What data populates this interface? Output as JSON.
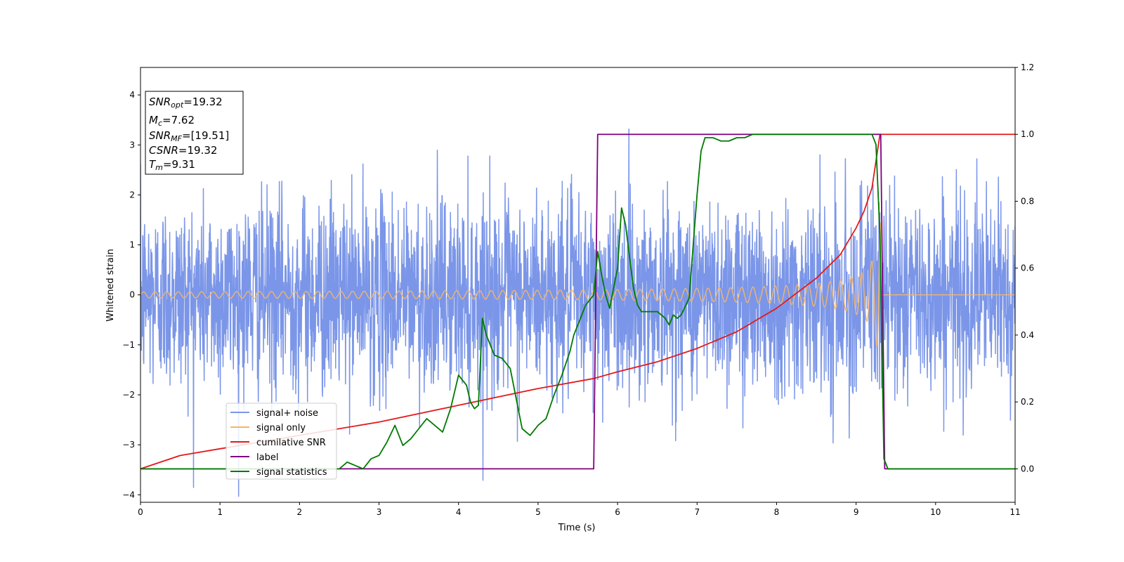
{
  "chart_data": {
    "type": "line",
    "xlabel": "Time (s)",
    "ylabel": "Whitened strain",
    "xlim": [
      0,
      11
    ],
    "ylim_left": [
      -4.15,
      4.55
    ],
    "ylim_right": [
      -0.1,
      1.2
    ],
    "x_ticks": [
      "0",
      "1",
      "2",
      "3",
      "4",
      "5",
      "6",
      "7",
      "8",
      "9",
      "10",
      "11"
    ],
    "y_ticks_left": [
      "−4",
      "−3",
      "−2",
      "−1",
      "0",
      "1",
      "2",
      "3",
      "4"
    ],
    "y_ticks_right": [
      "0.0",
      "0.2",
      "0.4",
      "0.6",
      "0.8",
      "1.0",
      "1.2"
    ],
    "legend_position": "lower-left",
    "grid": false,
    "annotation": {
      "lines": [
        {
          "name": "SNR",
          "sub": "opt",
          "value": "=19.32"
        },
        {
          "name": "M",
          "sub": "c",
          "value": "=7.62"
        },
        {
          "name": "SNR",
          "sub": "MF",
          "value": "=[19.51]"
        },
        {
          "name": "CSNR",
          "sub": "",
          "value": "=19.32"
        },
        {
          "name": "T",
          "sub": "m",
          "value": "=9.31"
        }
      ]
    },
    "series": [
      {
        "name": "signal+ noise",
        "color": "#7b96e8",
        "axis": "left",
        "noise_std": 0.95,
        "x_range": [
          0,
          11
        ]
      },
      {
        "name": "signal only",
        "color": "#f5b56a",
        "axis": "left",
        "merger_time": 9.31,
        "x_range": [
          0,
          11
        ]
      },
      {
        "name": "cumilative SNR",
        "color": "#e31a1c",
        "axis": "right",
        "x": [
          0,
          0.5,
          1,
          2,
          3,
          4,
          5,
          5.7,
          6,
          6.5,
          7,
          7.5,
          8,
          8.5,
          8.8,
          9,
          9.1,
          9.2,
          9.3,
          11
        ],
        "values": [
          0.0,
          0.04,
          0.06,
          0.1,
          0.14,
          0.19,
          0.24,
          0.27,
          0.29,
          0.32,
          0.36,
          0.41,
          0.48,
          0.57,
          0.64,
          0.72,
          0.77,
          0.84,
          1.0,
          1.0
        ]
      },
      {
        "name": "label",
        "color": "#800080",
        "axis": "right",
        "x": [
          0,
          5.7,
          5.75,
          9.31,
          9.36,
          11
        ],
        "values": [
          0,
          0,
          1,
          1,
          0,
          0
        ]
      },
      {
        "name": "signal statistics",
        "color": "#007a00",
        "axis": "right",
        "x": [
          0,
          2.5,
          2.6,
          2.8,
          2.9,
          3.0,
          3.1,
          3.2,
          3.3,
          3.4,
          3.5,
          3.6,
          3.7,
          3.8,
          3.9,
          4.0,
          4.1,
          4.15,
          4.2,
          4.25,
          4.3,
          4.35,
          4.45,
          4.55,
          4.65,
          4.7,
          4.8,
          4.9,
          5.0,
          5.1,
          5.2,
          5.3,
          5.4,
          5.45,
          5.5,
          5.6,
          5.7,
          5.75,
          5.8,
          5.85,
          5.9,
          6.0,
          6.05,
          6.1,
          6.2,
          6.25,
          6.3,
          6.4,
          6.5,
          6.55,
          6.6,
          6.65,
          6.7,
          6.75,
          6.8,
          6.9,
          7.0,
          7.05,
          7.1,
          7.2,
          7.3,
          7.4,
          7.5,
          7.6,
          7.7,
          7.8,
          7.9,
          8.0,
          8.1,
          8.2,
          8.5,
          9.0,
          9.2,
          9.25,
          9.3,
          9.35,
          9.4,
          11
        ],
        "values": [
          0,
          0.0,
          0.02,
          0.0,
          0.03,
          0.04,
          0.08,
          0.13,
          0.07,
          0.09,
          0.12,
          0.15,
          0.13,
          0.11,
          0.18,
          0.28,
          0.25,
          0.2,
          0.18,
          0.19,
          0.45,
          0.4,
          0.34,
          0.33,
          0.3,
          0.24,
          0.12,
          0.1,
          0.13,
          0.15,
          0.22,
          0.28,
          0.35,
          0.4,
          0.43,
          0.49,
          0.52,
          0.65,
          0.58,
          0.52,
          0.48,
          0.6,
          0.78,
          0.73,
          0.54,
          0.49,
          0.47,
          0.47,
          0.47,
          0.46,
          0.45,
          0.43,
          0.46,
          0.45,
          0.46,
          0.51,
          0.82,
          0.95,
          0.99,
          0.99,
          0.98,
          0.98,
          0.99,
          0.99,
          1.0,
          1.0,
          1.0,
          1.0,
          1.0,
          1.0,
          1.0,
          1.0,
          1.0,
          0.97,
          0.7,
          0.03,
          0.0,
          0.0
        ]
      }
    ]
  }
}
